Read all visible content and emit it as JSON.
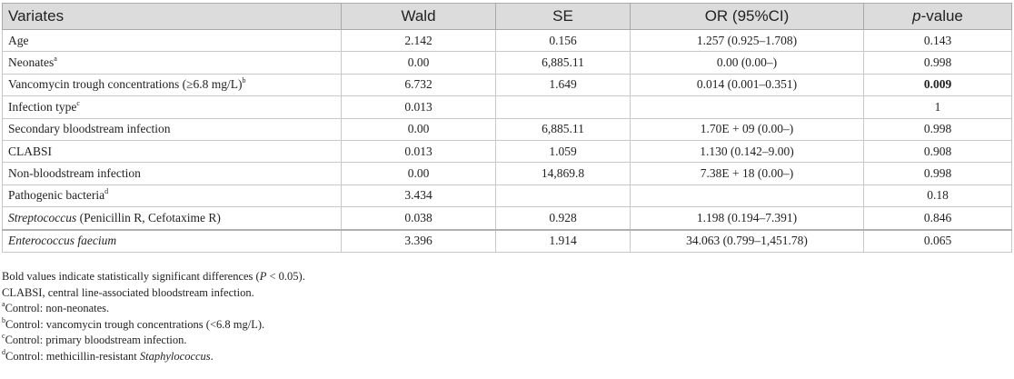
{
  "table": {
    "header": [
      [
        {
          "text": "Variates"
        }
      ],
      [
        {
          "text": "Wald"
        }
      ],
      [
        {
          "text": "SE"
        }
      ],
      [
        {
          "text": "OR (95%CI)"
        }
      ],
      [
        {
          "text": "p",
          "italic": true
        },
        {
          "text": "-value"
        }
      ]
    ],
    "rows": [
      {
        "label": [
          {
            "text": "Age"
          }
        ],
        "cells": [
          "2.142",
          "0.156",
          "1.257 (0.925–1.708)",
          "0.143"
        ]
      },
      {
        "label": [
          {
            "text": "Neonates"
          },
          {
            "text": "a",
            "sup": true
          }
        ],
        "cells": [
          "0.00",
          "6,885.11",
          "0.00 (0.00–)",
          "0.998"
        ]
      },
      {
        "label": [
          {
            "text": "Vancomycin trough concentrations (≥6.8 mg/L)"
          },
          {
            "text": "b",
            "sup": true
          }
        ],
        "cells": [
          "6.732",
          "1.649",
          "0.014 (0.001–0.351)",
          {
            "text": "0.009",
            "bold": true
          }
        ]
      },
      {
        "label": [
          {
            "text": "Infection type"
          },
          {
            "text": "c",
            "sup": true
          }
        ],
        "cells": [
          "0.013",
          null,
          null,
          "1"
        ]
      },
      {
        "label": [
          {
            "text": "Secondary bloodstream infection"
          }
        ],
        "cells": [
          "0.00",
          "6,885.11",
          "1.70E + 09 (0.00–)",
          "0.998"
        ]
      },
      {
        "label": [
          {
            "text": "CLABSI"
          }
        ],
        "cells": [
          "0.013",
          "1.059",
          "1.130 (0.142–9.00)",
          "0.908"
        ]
      },
      {
        "label": [
          {
            "text": "Non-bloodstream infection"
          }
        ],
        "cells": [
          "0.00",
          "14,869.8",
          "7.38E + 18 (0.00–)",
          "0.998"
        ]
      },
      {
        "label": [
          {
            "text": "Pathogenic bacteria"
          },
          {
            "text": "d",
            "sup": true
          }
        ],
        "cells": [
          "3.434",
          null,
          null,
          "0.18"
        ]
      },
      {
        "label": [
          {
            "text": "Streptococcus",
            "italic": true
          },
          {
            "text": " (Penicillin R, Cefotaxime R)"
          }
        ],
        "cells": [
          "0.038",
          "0.928",
          "1.198 (0.194–7.391)",
          "0.846"
        ]
      },
      {
        "label": [
          {
            "text": "Enterococcus faecium",
            "italic": true
          }
        ],
        "cells": [
          "3.396",
          "1.914",
          "34.063 (0.799–1,451.78)",
          "0.065"
        ]
      }
    ]
  },
  "notes": [
    [
      {
        "text": "Bold values indicate statistically significant differences ("
      },
      {
        "text": "P",
        "italic": true
      },
      {
        "text": " < 0.05)."
      }
    ],
    [
      {
        "text": "CLABSI, central line-associated bloodstream infection."
      }
    ],
    [
      {
        "text": "a",
        "sup": true
      },
      {
        "text": "Control: non-neonates."
      }
    ],
    [
      {
        "text": "b",
        "sup": true
      },
      {
        "text": "Control: vancomycin trough concentrations (<6.8 mg/L)."
      }
    ],
    [
      {
        "text": "c",
        "sup": true
      },
      {
        "text": "Control: primary bloodstream infection."
      }
    ],
    [
      {
        "text": "d",
        "sup": true
      },
      {
        "text": "Control: methicillin-resistant "
      },
      {
        "text": "Staphylococcus",
        "italic": true
      },
      {
        "text": "."
      }
    ]
  ]
}
